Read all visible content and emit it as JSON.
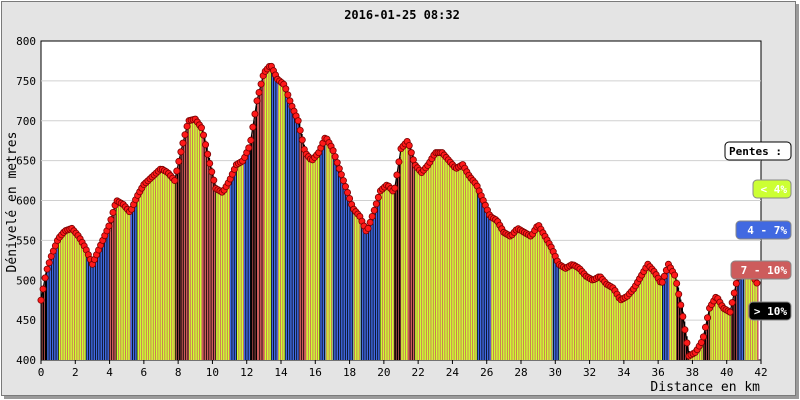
{
  "chart_data": {
    "type": "area",
    "title": "2016-01-25 08:32",
    "xlabel": "Distance en km",
    "ylabel": "Dénivelé en metres",
    "xlim": [
      0,
      42
    ],
    "ylim": [
      400,
      800
    ],
    "x_ticks": [
      "0",
      "2",
      "4",
      "6",
      "8",
      "10",
      "12",
      "14",
      "16",
      "18",
      "20",
      "22",
      "24",
      "26",
      "28",
      "30",
      "32",
      "34",
      "36",
      "38",
      "40",
      "42"
    ],
    "y_ticks": [
      "400",
      "450",
      "500",
      "550",
      "600",
      "650",
      "700",
      "750",
      "800"
    ],
    "grid": true,
    "legend_position": "right",
    "legend": {
      "title": "Pentes :",
      "items": [
        {
          "label": "< 4%",
          "color": "#ccff33"
        },
        {
          "label": "4 - 7%",
          "color": "#4169e1"
        },
        {
          "label": "7 - 10%",
          "color": "#cd5c5c"
        },
        {
          "label": "> 10%",
          "color": "#000000"
        }
      ]
    },
    "marker_color": "#ff1a1a",
    "series": [
      {
        "x": [
          0,
          0.3,
          0.6,
          1.0,
          1.4,
          1.8,
          2.2,
          2.6,
          3.0,
          3.5,
          4.0,
          4.4,
          4.8,
          5.2,
          5.6,
          6.0,
          6.5,
          7.0,
          7.4,
          7.8,
          8.2,
          8.6,
          9.0,
          9.4,
          9.8,
          10.2,
          10.6,
          11.0,
          11.4,
          11.8,
          12.2,
          12.6,
          13.0,
          13.4,
          13.8,
          14.2,
          14.6,
          15.0,
          15.4,
          15.8,
          16.2,
          16.6,
          17.0,
          17.4,
          17.8,
          18.2,
          18.6,
          19.0,
          19.4,
          19.8,
          20.2,
          20.6,
          21.0,
          21.4,
          21.8,
          22.2,
          22.6,
          23.0,
          23.4,
          23.8,
          24.2,
          24.6,
          25.0,
          25.4,
          25.8,
          26.2,
          26.6,
          27.0,
          27.4,
          27.8,
          28.2,
          28.6,
          29.0,
          29.4,
          29.8,
          30.2,
          30.6,
          31.0,
          31.4,
          31.8,
          32.2,
          32.6,
          33.0,
          33.4,
          33.8,
          34.2,
          34.6,
          35.0,
          35.4,
          35.8,
          36.2,
          36.6,
          37.0,
          37.4,
          37.8,
          38.2,
          38.6,
          39.0,
          39.4,
          39.8,
          40.2,
          40.6,
          41.0,
          41.4,
          41.8
        ],
        "y": [
          475,
          510,
          530,
          552,
          562,
          565,
          555,
          540,
          520,
          545,
          570,
          600,
          595,
          585,
          605,
          620,
          630,
          640,
          635,
          625,
          665,
          700,
          702,
          690,
          650,
          615,
          610,
          625,
          645,
          650,
          670,
          725,
          760,
          770,
          752,
          745,
          720,
          700,
          660,
          650,
          660,
          680,
          665,
          640,
          615,
          590,
          580,
          560,
          585,
          612,
          620,
          610,
          665,
          675,
          645,
          635,
          645,
          660,
          660,
          650,
          640,
          645,
          630,
          620,
          600,
          580,
          575,
          560,
          555,
          565,
          560,
          555,
          570,
          555,
          540,
          520,
          515,
          520,
          515,
          505,
          500,
          505,
          495,
          490,
          475,
          480,
          490,
          505,
          520,
          510,
          495,
          520,
          505,
          460,
          405,
          410,
          425,
          465,
          480,
          465,
          460,
          500,
          520,
          510,
          495
        ]
      }
    ]
  }
}
